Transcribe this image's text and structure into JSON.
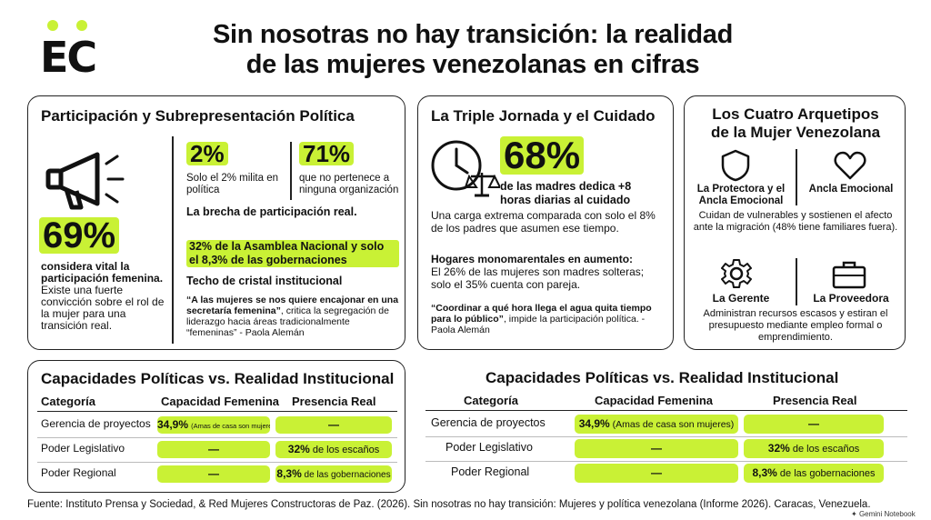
{
  "header": {
    "logo": "EC",
    "title_line1": "Sin nosotras no hay transición: la realidad",
    "title_line2": "de las mujeres venezolanas en cifras"
  },
  "colors": {
    "accent": "#c9f135",
    "text": "#111111",
    "border": "#222222"
  },
  "participacion": {
    "title": "Participación y Subrepresentación Política",
    "icon": "megaphone-icon",
    "stat69": "69%",
    "stat69_bold": "considera vital la participación femenina.",
    "stat69_text": "Existe una fuerte convicción sobre el rol de la mujer para una transición real.",
    "stat2": "2%",
    "stat2_text": "Solo el 2% milita en política",
    "stat71": "71%",
    "stat71_text": "que no pertenece a ninguna organización",
    "brecha": "La brecha de participación real.",
    "asamblea": "32% de la Asamblea Nacional y solo el 8,3% de las gobernaciones",
    "techo": "Techo de cristal institucional",
    "quote_bold": "“A las mujeres se nos quiere encajonar en una secretaría femenina”",
    "quote_rest": ", critica la segregación de liderazgo hacia áreas tradicionalmente “femeninas” - Paola Alemán"
  },
  "jornada": {
    "title": "La Triple Jornada y el Cuidado",
    "icon": "clock-scale-icon",
    "stat68": "68%",
    "stat68_text": "de las madres dedica +8 horas diarias al cuidado",
    "carga": "Una carga extrema comparada con solo el 8% de los padres que asumen ese tiempo.",
    "hogares_title": "Hogares monomarentales en aumento:",
    "hogares_text": "El 26% de las mujeres son madres solteras; solo el 35% cuenta con pareja.",
    "quote_bold": "“Coordinar a qué hora llega el agua quita tiempo para lo público”",
    "quote_rest": ", impide la participación política. - Paola Alemán"
  },
  "arquetipos": {
    "title_line1": "Los Cuatro Arquetipos",
    "title_line2": "de la Mujer Venezolana",
    "protectora": "La Protectora y el Ancla Emocional",
    "ancla": "Ancla Emocional",
    "top_text": "Cuidan de vulnerables y sostienen el afecto ante la migración (48% tiene familiares fuera).",
    "gerente": "La Gerente",
    "proveedora": "La Proveedora",
    "bottom_text": "Administran recursos escasos y estiran el presupuesto mediante empleo formal o emprendimiento.",
    "icons": [
      "shield-icon",
      "heart-icon",
      "gear-icon",
      "briefcase-icon"
    ]
  },
  "tabla1": {
    "title": "Capacidades Políticas vs. Realidad Institucional",
    "headers": [
      "Categoría",
      "Capacidad Femenina",
      "Presencia Real"
    ],
    "rows": [
      {
        "categoria": "Gerencia de proyectos",
        "capacidad_bold": "34,9%",
        "capacidad_rest": "(Amas de casa son mujeres)",
        "presencia_bold": "—",
        "presencia_rest": ""
      },
      {
        "categoria": "Poder Legislativo",
        "capacidad_bold": "—",
        "capacidad_rest": "",
        "presencia_bold": "32%",
        "presencia_rest": " de los escaños"
      },
      {
        "categoria": "Poder Regional",
        "capacidad_bold": "—",
        "capacidad_rest": "",
        "presencia_bold": "8,3%",
        "presencia_rest": " de las gobernaciones"
      }
    ]
  },
  "tabla2": {
    "title": "Capacidades Políticas vs. Realidad Institucional",
    "headers": [
      "Categoría",
      "Capacidad Femenina",
      "Presencia Real"
    ],
    "rows": [
      {
        "categoria": "Gerencia de proyectos",
        "capacidad_bold": "34,9%",
        "capacidad_rest": " (Amas de casa son mujeres)",
        "presencia_bold": "—",
        "presencia_rest": ""
      },
      {
        "categoria": "Poder Legislativo",
        "capacidad_bold": "—",
        "capacidad_rest": "",
        "presencia_bold": "32%",
        "presencia_rest": " de los escaños"
      },
      {
        "categoria": "Poder Regional",
        "capacidad_bold": "—",
        "capacidad_rest": "",
        "presencia_bold": "8,3%",
        "presencia_rest": " de las gobernaciones"
      }
    ]
  },
  "footer": {
    "source": "Fuente: Instituto Prensa y Sociedad, & Red Mujeres Constructoras de Paz. (2026). Sin nosotras no hay transición: Mujeres y política venezolana (Informe 2026). Caracas, Venezuela.",
    "gemini": "Gemini Notebook"
  }
}
